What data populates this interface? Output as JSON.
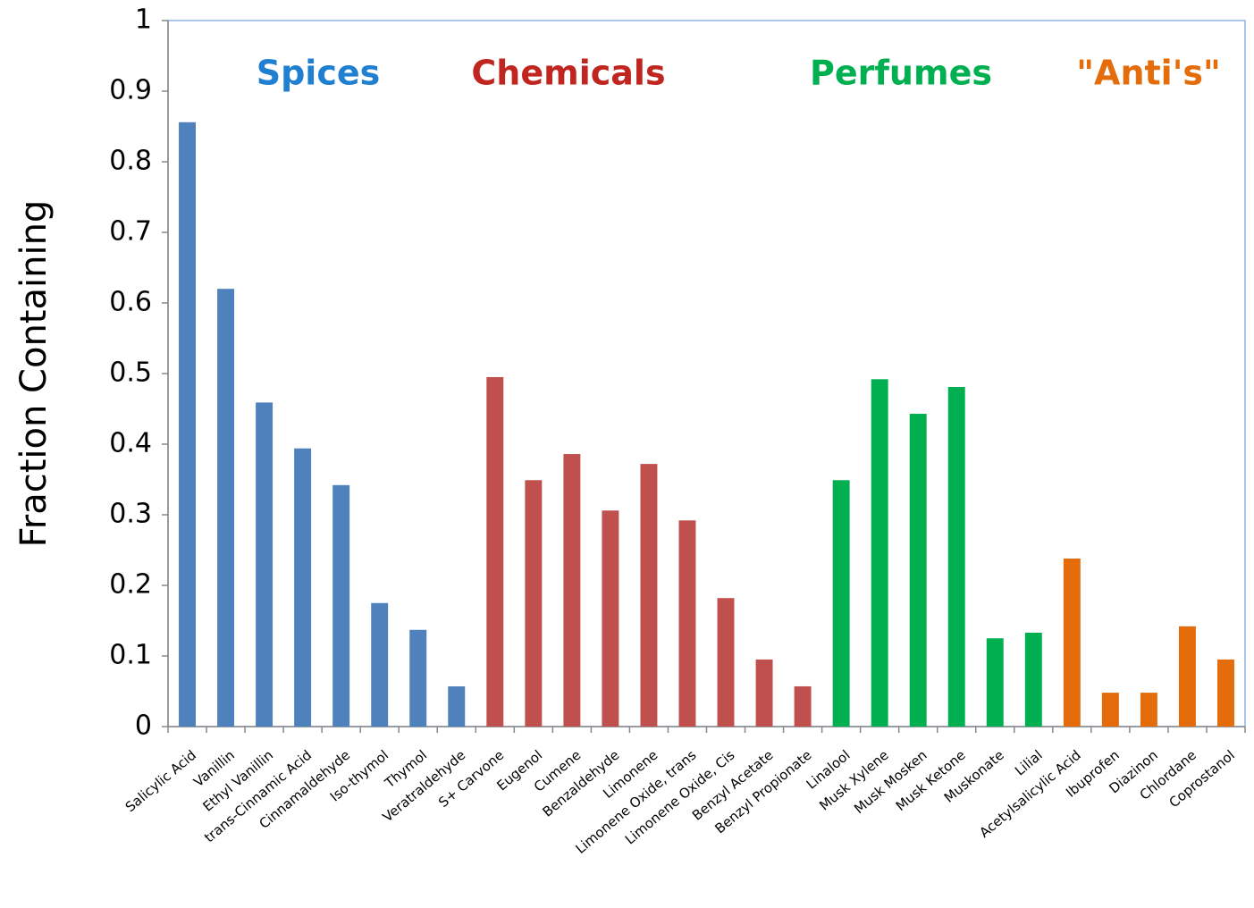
{
  "chart_data": {
    "type": "bar",
    "y_label": "Fraction Containing",
    "categories": [
      "Salicylic Acid",
      "Vanillin",
      "Ethyl Vanillin",
      "trans-Cinnamic Acid",
      "Cinnamaldehyde",
      "Iso-thymol",
      "Thymol",
      "Veratraldehyde",
      "S+ Carvone",
      "Eugenol",
      "Cumene",
      "Benzaldehyde",
      "Limonene",
      "Limonene Oxide, trans",
      "Limonene Oxide, Cis",
      "Benzyl Acetate",
      "Benzyl Propionate",
      "Linalool",
      "Musk Xylene",
      "Musk Mosken",
      "Musk Ketone",
      "Muskonate",
      "Lilial",
      "Acetylsalicylic Acid",
      "Ibuprofen",
      "Diazinon",
      "Chlordane",
      "Coprostanol"
    ],
    "values": [
      0.856,
      0.62,
      0.459,
      0.394,
      0.342,
      0.175,
      0.137,
      0.057,
      0.495,
      0.349,
      0.386,
      0.306,
      0.372,
      0.292,
      0.182,
      0.095,
      0.057,
      0.349,
      0.492,
      0.443,
      0.481,
      0.125,
      0.133,
      0.238,
      0.048,
      0.048,
      0.142,
      0.095
    ],
    "colors": [
      "#4f81bd",
      "#4f81bd",
      "#4f81bd",
      "#4f81bd",
      "#4f81bd",
      "#4f81bd",
      "#4f81bd",
      "#4f81bd",
      "#c0504d",
      "#c0504d",
      "#c0504d",
      "#c0504d",
      "#c0504d",
      "#c0504d",
      "#c0504d",
      "#c0504d",
      "#c0504d",
      "#00b050",
      "#00b050",
      "#00b050",
      "#00b050",
      "#00b050",
      "#00b050",
      "#e46c0a",
      "#e46c0a",
      "#e46c0a",
      "#e46c0a",
      "#e46c0a"
    ],
    "annotations": [
      {
        "text": "Spices",
        "color": "#1f7fd0"
      },
      {
        "text": "Chemicals",
        "color": "#c0261f"
      },
      {
        "text": "Perfumes",
        "color": "#00b050"
      },
      {
        "text": "\"Anti's\"",
        "color": "#e46c0a"
      }
    ],
    "ylim": [
      0,
      1
    ],
    "yticks": [
      0,
      0.1,
      0.2,
      0.3,
      0.4,
      0.5,
      0.6,
      0.7,
      0.8,
      0.9,
      1
    ]
  }
}
